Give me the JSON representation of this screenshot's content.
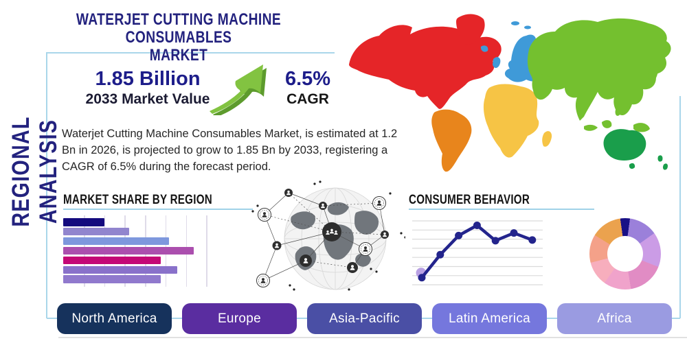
{
  "header": {
    "title_line1": "WATERJET CUTTING MACHINE CONSUMABLES",
    "title_line2": "MARKET",
    "side_label": "REGIONAL ANALYSIS"
  },
  "stats": {
    "market_value": "1.85 Billion",
    "market_value_label": "2033 Market Value",
    "cagr_value": "6.5%",
    "cagr_label": "CAGR",
    "arrow_icon": "growth-arrow-icon",
    "arrow_color": "#82c341",
    "arrow_shadow_color": "#5d9b2d"
  },
  "description": "Waterjet Cutting Machine Consumables Market, is estimated at 1.2 Bn in 2026, is projected to grow to 1.85 Bn by 2033, registering a CAGR of 6.5% during the forecast period.",
  "section_headers": {
    "market_share": "MARKET SHARE BY REGION",
    "consumer_behavior": "CONSUMER BEHAVIOR"
  },
  "region_buttons": [
    {
      "label": "North America",
      "color": "#16325c"
    },
    {
      "label": "Europe",
      "color": "#5a2da0"
    },
    {
      "label": "Asia-Pacific",
      "color": "#4a4fa5"
    },
    {
      "label": "Latin America",
      "color": "#7577dd"
    },
    {
      "label": "Africa",
      "color": "#9a9be1"
    }
  ],
  "chart_data": [
    {
      "type": "bar",
      "title": "MARKET SHARE BY REGION",
      "orientation": "horizontal",
      "labels_visible": false,
      "values": [
        30,
        48,
        77,
        95,
        71,
        83,
        71
      ],
      "bar_colors": [
        "#140a7e",
        "#9185ce",
        "#7e98dd",
        "#ab4fae",
        "#c40876",
        "#8971ca",
        "#9079cd"
      ],
      "xlim": [
        0,
        100
      ],
      "grid": "vertical"
    },
    {
      "type": "line",
      "title": "CONSUMER BEHAVIOR",
      "x": [
        1,
        2,
        3,
        4,
        5,
        6,
        7
      ],
      "values": [
        11,
        47,
        77,
        93,
        69,
        81,
        70
      ],
      "line_color": "#23248c",
      "marker_color": "#23248c",
      "start_marker_halo_color": "#b9a1e3",
      "ylim": [
        0,
        100
      ],
      "grid": "horizontal"
    },
    {
      "type": "pie",
      "donut": true,
      "start_angle_deg": 352,
      "values": [
        4.4,
        13.0,
        15.8,
        16.4,
        12.5,
        11.1,
        12.8,
        14.0
      ],
      "colors": [
        "#191086",
        "#9b80da",
        "#cb9ce6",
        "#e18cc4",
        "#f0a3cb",
        "#f7aebd",
        "#f4a189",
        "#eba24e"
      ]
    }
  ],
  "map": {
    "name": "world-map-by-region",
    "colors": {
      "north_america": "#e52528",
      "south_america": "#e8851c",
      "europe": "#3f9ad8",
      "africa": "#f6c445",
      "asia": "#74c02f",
      "australia": "#1a9e4b"
    }
  },
  "accents": {
    "frame_color": "#a9d6ea",
    "underline_color": "#9fd2e8",
    "title_color": "#23227e"
  }
}
